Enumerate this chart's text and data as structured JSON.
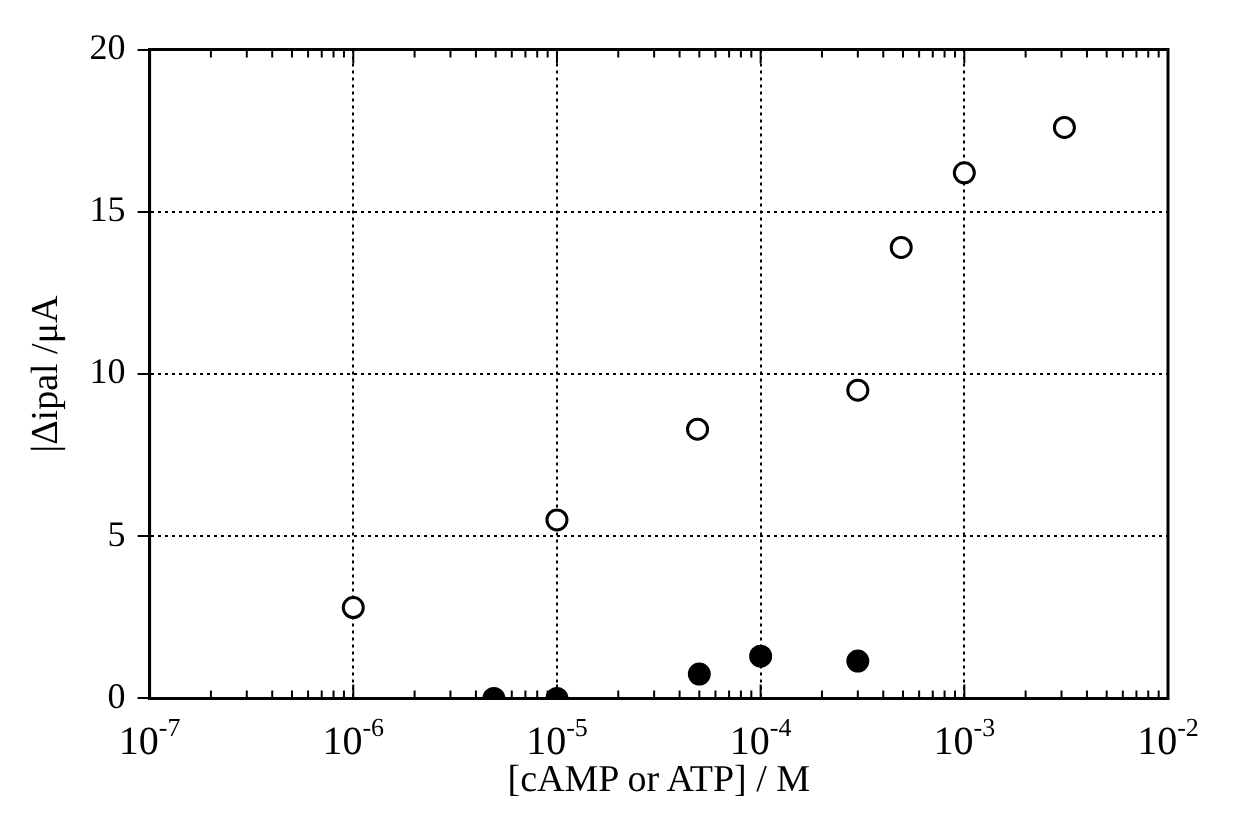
{
  "chart_data": {
    "type": "scatter",
    "xlabel": "[cAMP or ATP] / M",
    "ylabel": "|Δipal /μA",
    "log": "x",
    "grid": true,
    "legend": false,
    "marker": "circle",
    "xlim": [
      1e-07,
      0.01
    ],
    "xticks": [
      {
        "value": 1e-07,
        "label": "10$^{-7}$"
      },
      {
        "value": 1e-06,
        "label": "10$^{-6}$"
      },
      {
        "value": 1e-05,
        "label": "10$^{-5}$"
      },
      {
        "value": 0.0001,
        "label": "10$^{-4}$"
      },
      {
        "value": 0.001,
        "label": "10$^{-3}$"
      },
      {
        "value": 0.01,
        "label": "10$^{-2}$"
      }
    ],
    "ylim": [
      0,
      20
    ],
    "yticks": [
      0,
      5,
      10,
      15,
      20
    ],
    "series": [
      {
        "color": "#ffffff",
        "x": [
          1e-06,
          1e-05,
          4.9e-05,
          0.0003,
          0.00049,
          0.001,
          0.0031
        ],
        "values": [
          2.8,
          5.5,
          8.3,
          9.5,
          13.9,
          16.2,
          17.6
        ]
      },
      {
        "color": "#000000",
        "x": [
          4.9e-06,
          1e-05,
          5e-05,
          0.0001,
          0.0003
        ],
        "values": [
          0,
          0,
          0.75,
          1.3,
          1.15
        ]
      }
    ]
  }
}
